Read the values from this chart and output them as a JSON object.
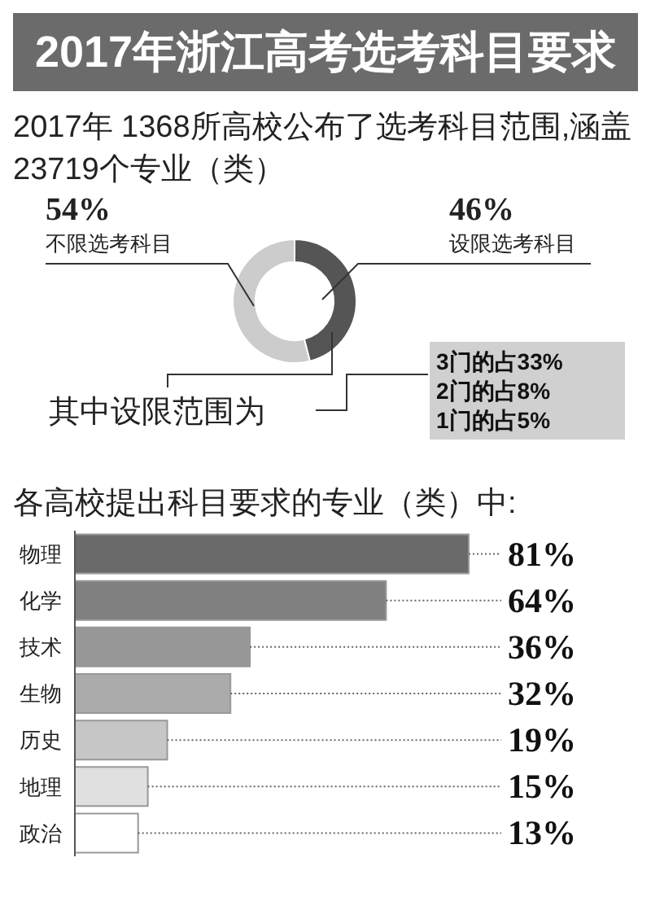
{
  "chart_data": [
    {
      "type": "donut",
      "title": "2017年浙江高考选考科目要求",
      "subtitle": "2017年 1368所高校公布了选考科目范围,涵盖23719个专业（类）",
      "categories": [
        "不限选考科目",
        "设限选考科目"
      ],
      "values": [
        54,
        46
      ],
      "colors": [
        "#cccccc",
        "#555555"
      ],
      "value_labels": [
        "54%",
        "46%"
      ],
      "annotations": [
        "其中设限范围为",
        "3门的占33%",
        "2门的占8%",
        "1门的占5%"
      ]
    },
    {
      "type": "bar",
      "orientation": "horizontal",
      "title": "各高校提出科目要求的专业（类）中:",
      "categories": [
        "物理",
        "化学",
        "技术",
        "生物",
        "历史",
        "地理",
        "政治"
      ],
      "values": [
        81,
        64,
        36,
        32,
        19,
        15,
        13
      ],
      "colors": [
        "#6a6a6a",
        "#808080",
        "#979797",
        "#ababab",
        "#c6c6c6",
        "#e0e0e0",
        "#ffffff"
      ],
      "value_labels": [
        "81%",
        "64%",
        "36%",
        "32%",
        "19%",
        "15%",
        "13%"
      ]
    }
  ]
}
